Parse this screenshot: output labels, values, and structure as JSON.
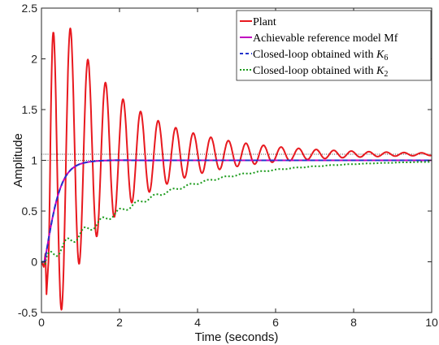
{
  "chart_data": {
    "type": "line",
    "xlabel": "Time (seconds)",
    "ylabel": "Amplitude",
    "xlim": [
      0,
      10
    ],
    "ylim": [
      -0.5,
      2.5
    ],
    "xticks": [
      "0",
      "2",
      "4",
      "6",
      "8",
      "10"
    ],
    "yticks": [
      "-0.5",
      "0",
      "0.5",
      "1",
      "1.5",
      "2",
      "2.5"
    ],
    "grid": false,
    "legend_position": "top-right",
    "reference_lines": [
      {
        "y": 1.0,
        "style": "dotted",
        "color": "#000000"
      },
      {
        "y": 1.06,
        "style": "dotted",
        "color": "#000000"
      }
    ],
    "series": [
      {
        "name": "Plant",
        "color": "#e8191f",
        "style": "solid",
        "model": {
          "kind": "oscillatory",
          "final": 1.06,
          "amp": 1.85,
          "decay": 0.45,
          "period": 0.45,
          "t0": 0.18,
          "pre": [
            [
              0,
              0
            ],
            [
              0.06,
              -0.05
            ],
            [
              0.1,
              0.08
            ],
            [
              0.13,
              -0.32
            ],
            [
              0.18,
              0.0
            ]
          ]
        }
      },
      {
        "name": "Achievable reference model Mf",
        "color": "#c000c0",
        "style": "solid",
        "model": {
          "kind": "fast",
          "final": 1.0
        }
      },
      {
        "name": "Closed-loop obtained with K",
        "subscript": "6",
        "color": "#2233cc",
        "style": "dashed",
        "model": {
          "kind": "fast",
          "final": 1.0
        }
      },
      {
        "name": "Closed-loop obtained with K",
        "subscript": "2",
        "color": "#1a9a1a",
        "style": "dotted",
        "model": {
          "kind": "slow",
          "final": 1.0
        }
      }
    ]
  }
}
